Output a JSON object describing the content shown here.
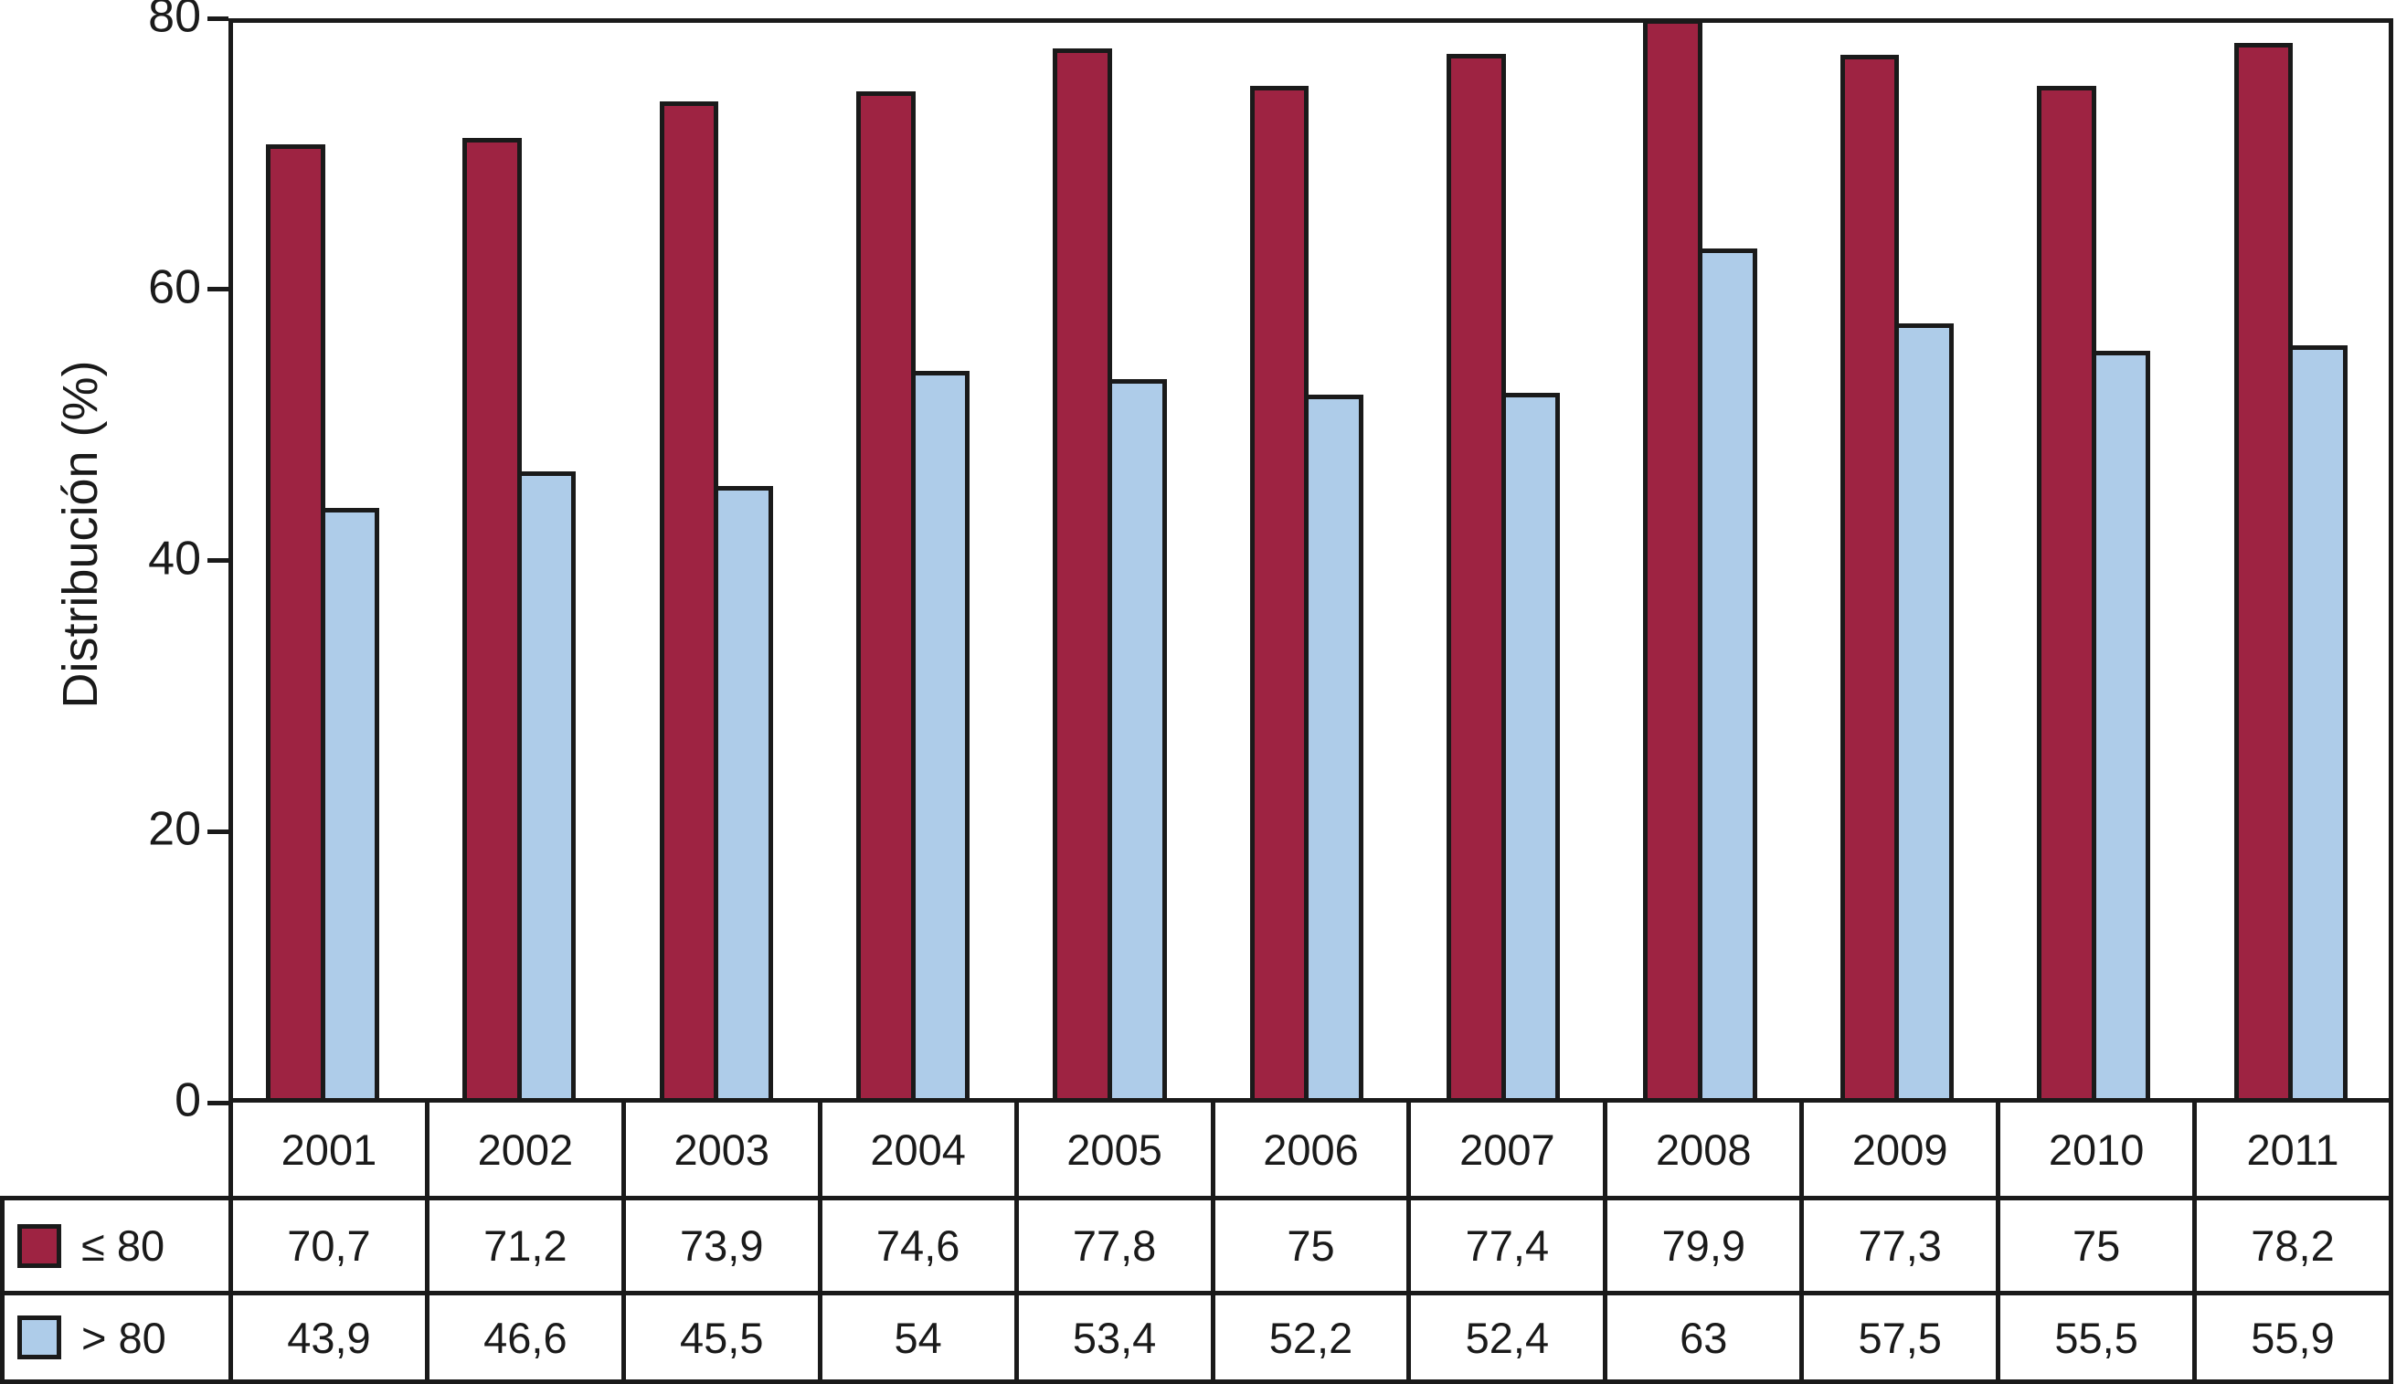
{
  "chart_data": {
    "type": "bar",
    "title": "",
    "xlabel": "",
    "ylabel": "Distribución (%)",
    "ylim": [
      0,
      80
    ],
    "yticks": [
      0,
      20,
      40,
      60,
      80
    ],
    "grid": false,
    "legend_position": "table-left",
    "categories": [
      "2001",
      "2002",
      "2003",
      "2004",
      "2005",
      "2006",
      "2007",
      "2008",
      "2009",
      "2010",
      "2011"
    ],
    "series": [
      {
        "name": "≤ 80",
        "color": "#9e2342",
        "values": [
          70.7,
          71.2,
          73.9,
          74.6,
          77.8,
          75,
          77.4,
          79.9,
          77.3,
          75,
          78.2
        ],
        "labels": [
          "70,7",
          "71,2",
          "73,9",
          "74,6",
          "77,8",
          "75",
          "77,4",
          "79,9",
          "77,3",
          "75",
          "78,2"
        ]
      },
      {
        "name": "> 80",
        "color": "#aecce9",
        "values": [
          43.9,
          46.6,
          45.5,
          54,
          53.4,
          52.2,
          52.4,
          63,
          57.5,
          55.5,
          55.9
        ],
        "labels": [
          "43,9",
          "46,6",
          "45,5",
          "54",
          "53,4",
          "52,2",
          "52,4",
          "63",
          "57,5",
          "55,5",
          "55,9"
        ]
      }
    ]
  },
  "colors": {
    "outline": "#1a1a1a",
    "background": "#ffffff",
    "text": "#1a1a1a"
  }
}
